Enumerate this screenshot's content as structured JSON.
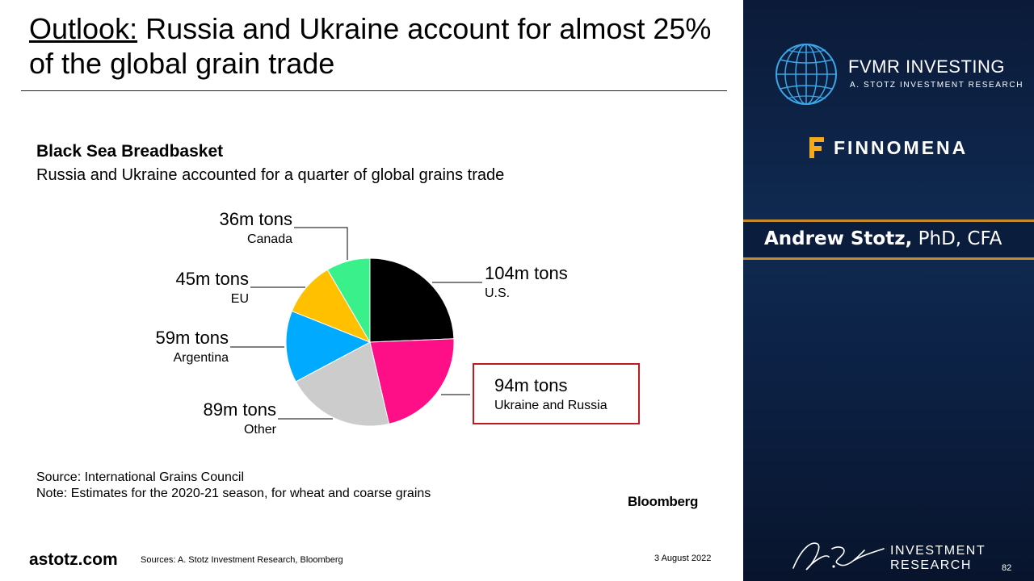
{
  "slide": {
    "title_prefix": "Outlook:",
    "title_rest": " Russia and Ukraine account for almost 25% of the global grain trade"
  },
  "chart_data": {
    "type": "pie",
    "title": "Black Sea Breadbasket",
    "subtitle": "Russia and Ukraine accounted for a quarter of global grains trade",
    "unit": "m tons",
    "slices": [
      {
        "name": "U.S.",
        "value": 104,
        "label": "104m tons",
        "color": "#000000"
      },
      {
        "name": "Ukraine and Russia",
        "value": 94,
        "label": "94m tons",
        "color": "#ff0f87",
        "highlighted": true
      },
      {
        "name": "Other",
        "value": 89,
        "label": "89m tons",
        "color": "#cccccc"
      },
      {
        "name": "Argentina",
        "value": 59,
        "label": "59m tons",
        "color": "#00aaff"
      },
      {
        "name": "EU",
        "value": 45,
        "label": "45m tons",
        "color": "#ffc000"
      },
      {
        "name": "Canada",
        "value": 36,
        "label": "36m tons",
        "color": "#3af08a"
      }
    ],
    "source": "Source: International Grains Council",
    "note": "Note: Estimates for the 2020-21 season, for wheat and coarse grains",
    "brand": "Bloomberg"
  },
  "footer": {
    "site": "astotz.com",
    "sources": "Sources: A. Stotz Investment Research, Bloomberg",
    "date": "3 August 2022"
  },
  "sidebar": {
    "fvmr_name": "FVMR INVESTING",
    "fvmr_tagline": "A. STOTZ INVESTMENT RESEARCH",
    "finnomena": "FINNOMENA",
    "presenter_name": "Andrew Stotz,",
    "presenter_credentials": " PhD, CFA",
    "bottom_line1": "INVESTMENT",
    "bottom_line2": "RESEARCH",
    "page_number": "82",
    "signature_icon": "signature-icon",
    "globe_icon": "globe-icon"
  }
}
